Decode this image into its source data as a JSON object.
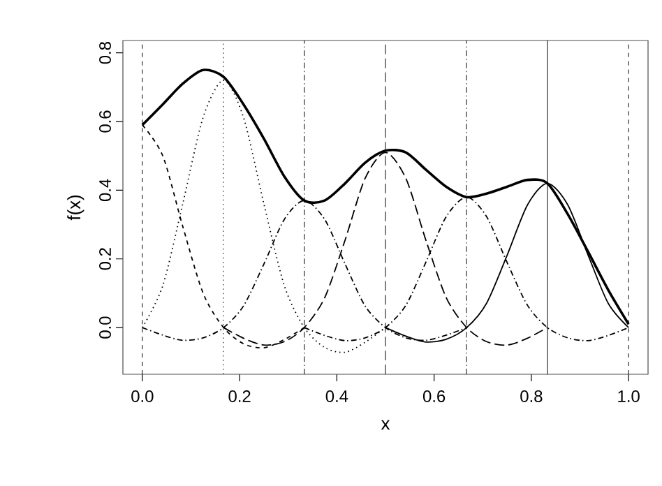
{
  "chart_data": {
    "type": "line",
    "xlabel": "x",
    "ylabel": "f(x)",
    "xlim": [
      -0.04,
      1.04
    ],
    "ylim": [
      -0.136,
      0.836
    ],
    "xticks": [
      {
        "value": 0,
        "label": "0.0"
      },
      0.2,
      0.4,
      0.6,
      0.8,
      {
        "value": 1,
        "label": "1.0"
      }
    ],
    "yticks": [
      {
        "value": 0,
        "label": "0.0"
      },
      0.2,
      0.4,
      0.6,
      0.8
    ],
    "grid": false,
    "marker": "none",
    "series": [
      {
        "color": "#000000",
        "line_style": "dashed",
        "x": [
          0,
          0.042,
          0.083,
          0.125,
          0.167,
          0.208,
          0.25,
          0.292,
          0.333
        ],
        "values": [
          0.59,
          0.5,
          0.295,
          0.1,
          0,
          -0.047,
          -0.059,
          -0.035,
          0
        ]
      },
      {
        "color": "#000000",
        "line_style": "dotted",
        "x": [
          0,
          0.042,
          0.083,
          0.125,
          0.167,
          0.208,
          0.25,
          0.292,
          0.333,
          0.375,
          0.417,
          0.458,
          0.5
        ],
        "values": [
          0,
          0.122,
          0.36,
          0.612,
          0.72,
          0.612,
          0.36,
          0.122,
          0,
          -0.058,
          -0.072,
          -0.043,
          0
        ]
      },
      {
        "color": "#000000",
        "line_style": "dashdot",
        "x": [
          0,
          0.042,
          0.083,
          0.125,
          0.167,
          0.208,
          0.25,
          0.292,
          0.333,
          0.375,
          0.417,
          0.458,
          0.5,
          0.542,
          0.583,
          0.625,
          0.667
        ],
        "values": [
          0,
          -0.022,
          -0.037,
          -0.03,
          0,
          0.063,
          0.185,
          0.315,
          0.37,
          0.315,
          0.185,
          0.063,
          0,
          -0.03,
          -0.037,
          -0.022,
          0
        ]
      },
      {
        "color": "#000000",
        "line_style": "longdashed",
        "x": [
          0.167,
          0.208,
          0.25,
          0.292,
          0.333,
          0.375,
          0.417,
          0.458,
          0.5,
          0.542,
          0.583,
          0.625,
          0.667,
          0.708,
          0.75,
          0.792,
          0.833
        ],
        "values": [
          0,
          -0.031,
          -0.051,
          -0.041,
          0,
          0.087,
          0.255,
          0.434,
          0.51,
          0.434,
          0.255,
          0.087,
          0,
          -0.041,
          -0.051,
          -0.031,
          0
        ]
      },
      {
        "color": "#000000",
        "line_style": "dashdot",
        "x": [
          0.333,
          0.375,
          0.417,
          0.458,
          0.5,
          0.542,
          0.583,
          0.625,
          0.667,
          0.708,
          0.75,
          0.792,
          0.833,
          0.875,
          0.917,
          0.958,
          1.0
        ],
        "values": [
          0,
          -0.023,
          -0.038,
          -0.03,
          0,
          0.065,
          0.19,
          0.323,
          0.38,
          0.323,
          0.19,
          0.065,
          0,
          -0.03,
          -0.038,
          -0.023,
          0
        ]
      },
      {
        "color": "#000000",
        "line_style": "solid",
        "x": [
          0.5,
          0.542,
          0.583,
          0.625,
          0.667,
          0.708,
          0.75,
          0.792,
          0.833,
          0.875,
          0.917,
          0.958,
          1.0
        ],
        "values": [
          0,
          -0.025,
          -0.042,
          -0.034,
          0,
          0.071,
          0.21,
          0.357,
          0.42,
          0.357,
          0.21,
          0.071,
          0
        ]
      },
      {
        "color": "#000000",
        "line_style": "solid",
        "x": [
          0,
          0.042,
          0.083,
          0.125,
          0.167,
          0.208,
          0.25,
          0.292,
          0.333,
          0.375,
          0.417,
          0.458,
          0.5,
          0.542,
          0.583,
          0.625,
          0.667,
          0.708,
          0.75,
          0.792,
          0.833,
          0.875,
          0.917,
          0.958,
          1.0
        ],
        "values": [
          0.59,
          0.65,
          0.71,
          0.75,
          0.73,
          0.65,
          0.55,
          0.44,
          0.37,
          0.37,
          0.42,
          0.48,
          0.515,
          0.51,
          0.46,
          0.41,
          0.38,
          0.39,
          0.41,
          0.43,
          0.42,
          0.33,
          0.22,
          0.11,
          0.01
        ]
      }
    ],
    "ref_lines": [
      {
        "axis": "x",
        "value": 0,
        "color": "#000000",
        "line_style": "dashed"
      },
      {
        "axis": "x",
        "value": 0.1667,
        "color": "#000000",
        "line_style": "dotted"
      },
      {
        "axis": "x",
        "value": 0.3333,
        "color": "#000000",
        "line_style": "dashdot"
      },
      {
        "axis": "x",
        "value": 0.5,
        "color": "#000000",
        "line_style": "longdashed"
      },
      {
        "axis": "x",
        "value": 0.6667,
        "color": "#000000",
        "line_style": "dashdot"
      },
      {
        "axis": "x",
        "value": 0.8333,
        "color": "#000000",
        "line_style": "solid"
      },
      {
        "axis": "x",
        "value": 1,
        "color": "#000000",
        "line_style": "dashed"
      }
    ]
  }
}
